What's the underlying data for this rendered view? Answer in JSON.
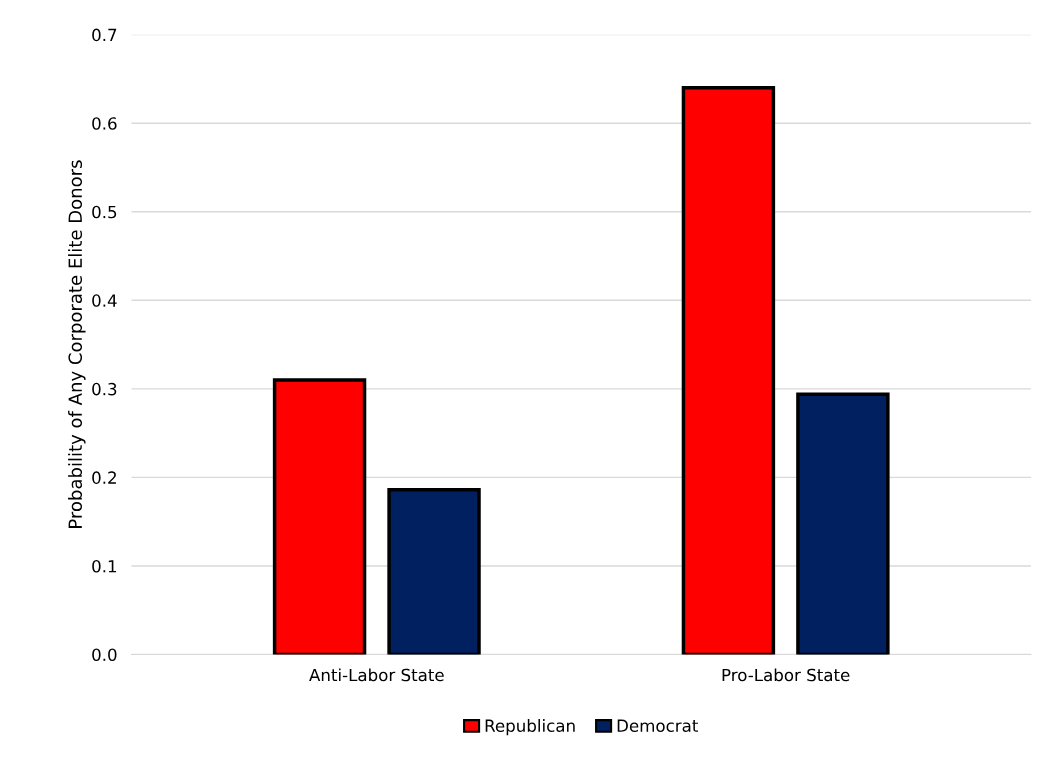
{
  "chart_data": {
    "type": "bar",
    "ylabel": "Probability of Any Corporate Elite Donors",
    "categories": [
      "Anti-Labor State",
      "Pro-Labor State"
    ],
    "series": [
      {
        "name": "Republican",
        "color": "#ff0000",
        "values": [
          0.31,
          0.64
        ]
      },
      {
        "name": "Democrat",
        "color": "#002060",
        "values": [
          0.186,
          0.294
        ]
      }
    ],
    "ylim": [
      0,
      0.7
    ],
    "yticks": [
      {
        "value": 0,
        "label": "0.0"
      },
      0.1,
      0.2,
      0.3,
      0.4,
      0.5,
      0.6,
      0.7
    ],
    "grid": "y",
    "legend": "bottom"
  }
}
